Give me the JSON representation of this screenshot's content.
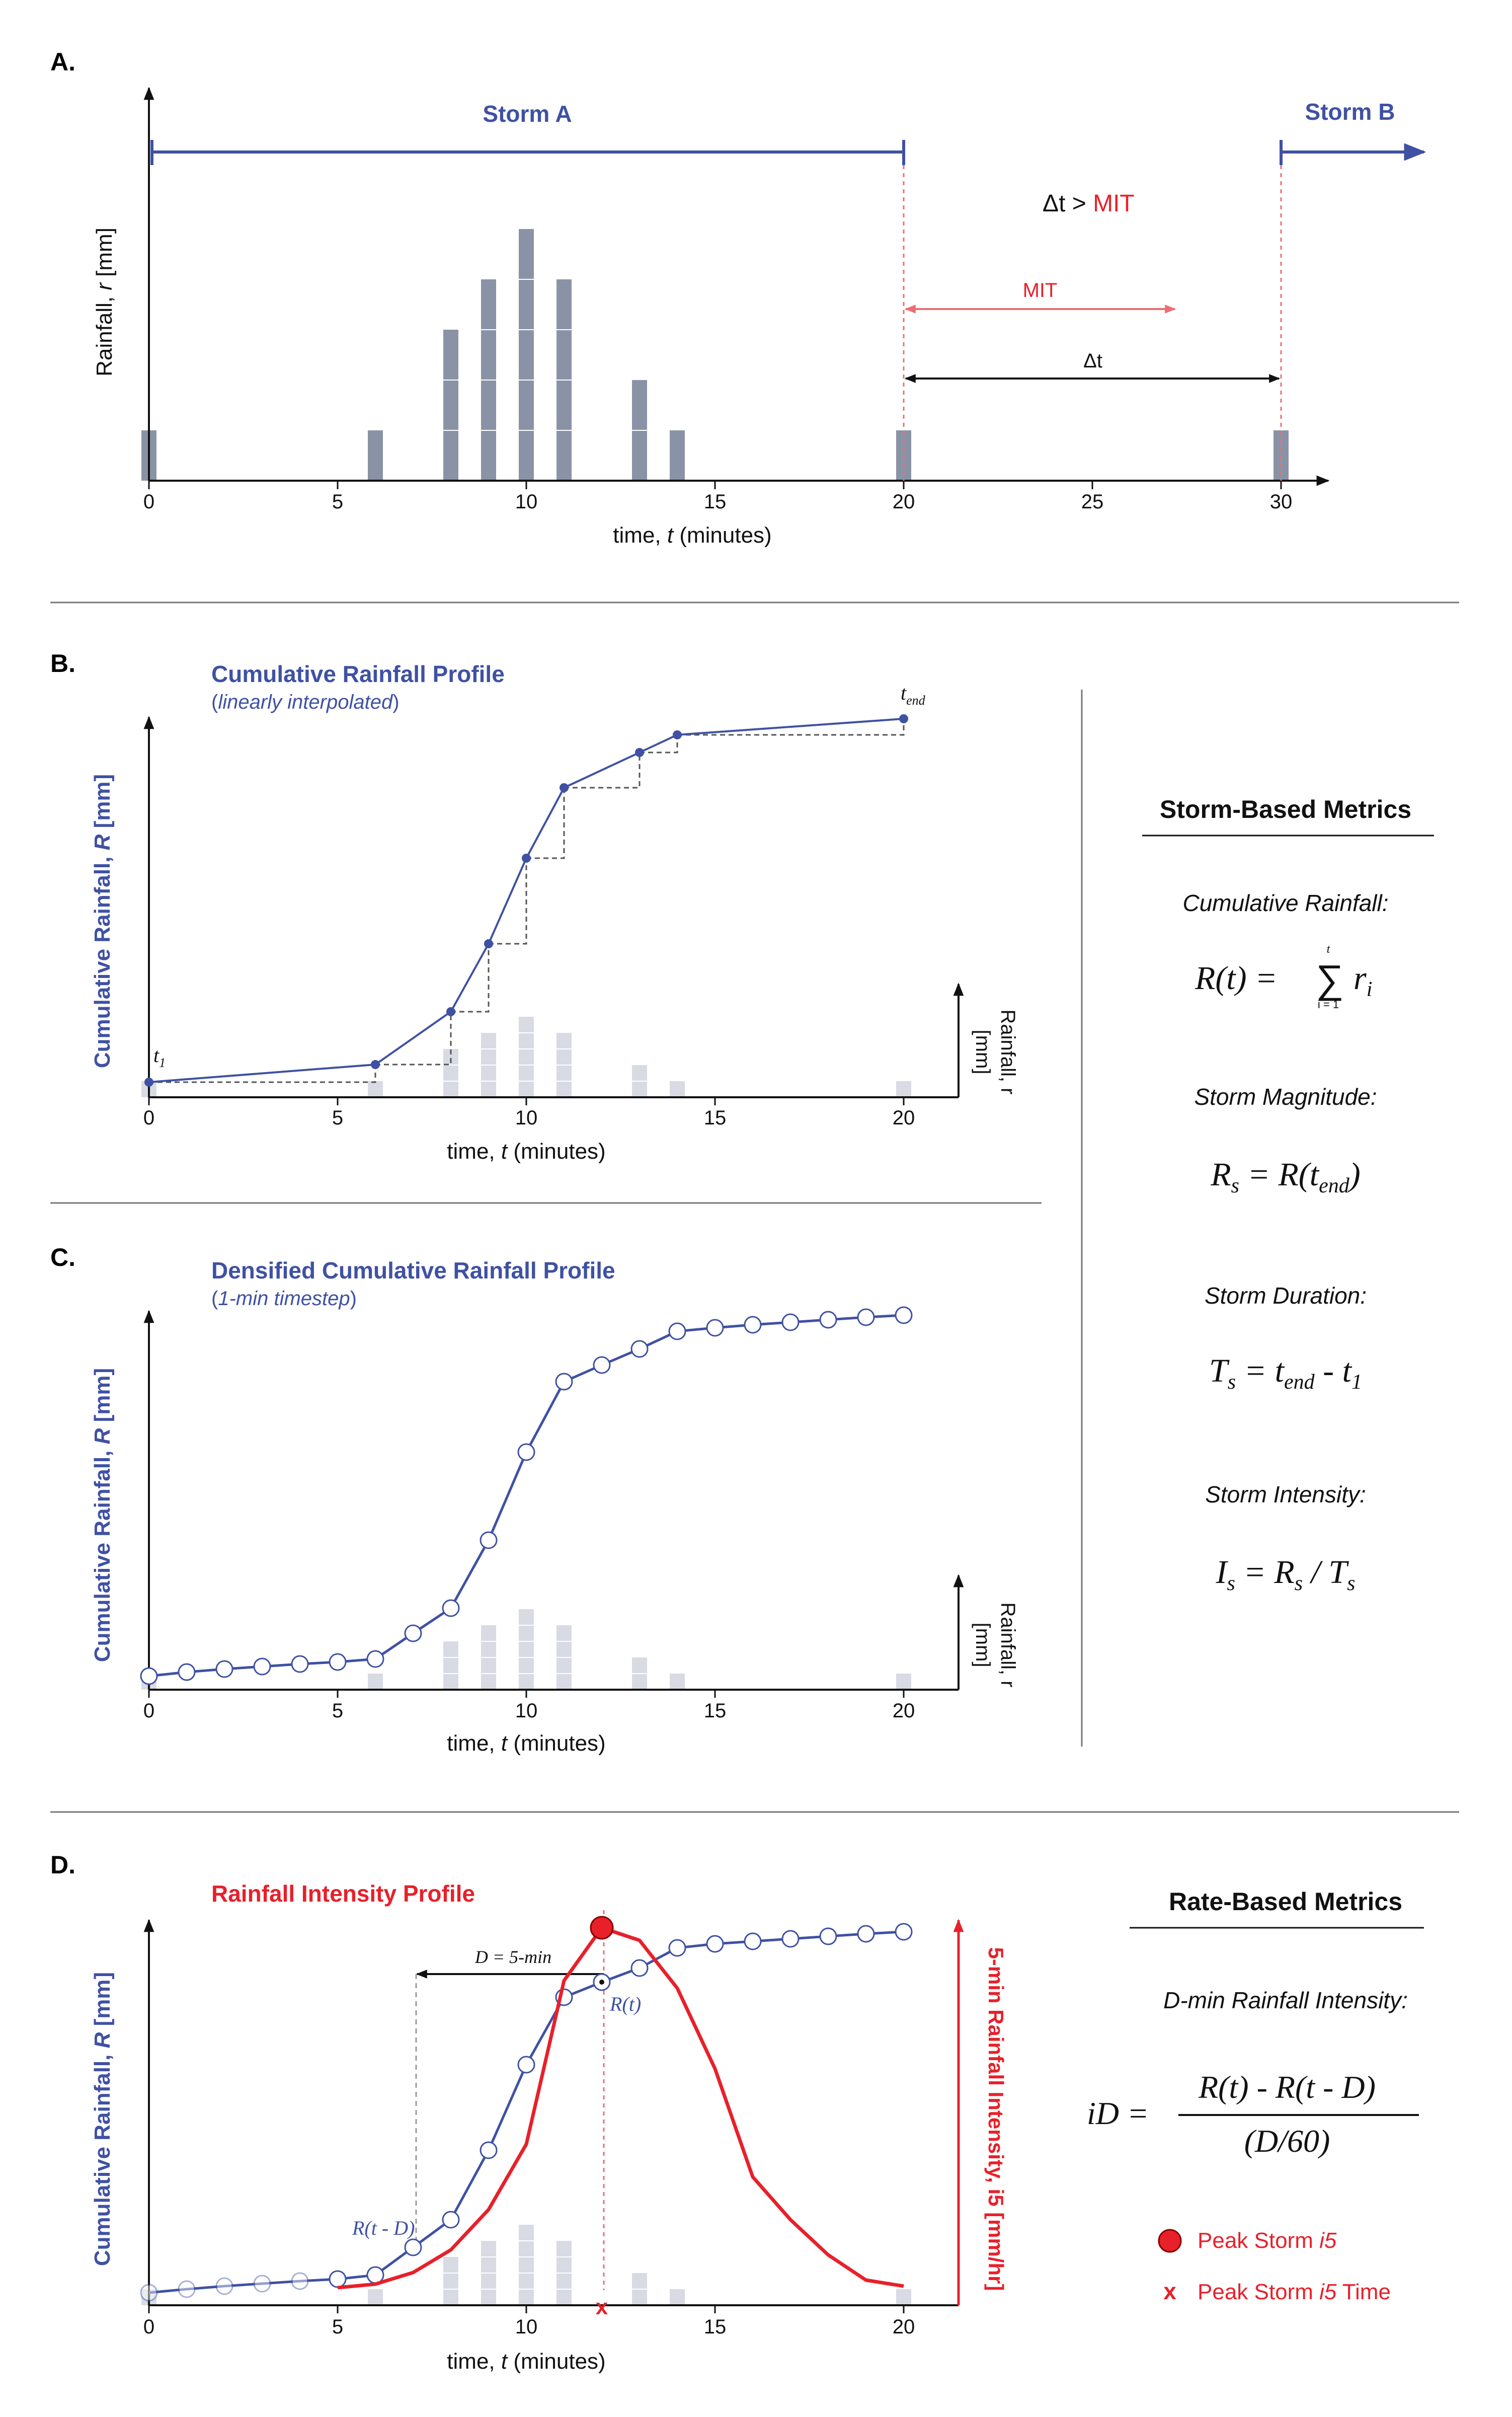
{
  "colors": {
    "blue": "#3f51a3",
    "red": "#e8202a",
    "pale_red": "#ea6f73",
    "bar_dark": "#8a93a6",
    "bar_light": "#d8dbe3",
    "black": "#111111",
    "gray_line": "#888888"
  },
  "panel_a": {
    "label": "A.",
    "storm_a_label": "Storm A",
    "storm_b_label": "Storm B",
    "delta_t_gt": "Δt > ",
    "mit_word": "MIT",
    "mit_arrow_label": "MIT",
    "delta_t_label": "Δt",
    "y_label_pre": "Rainfall, ",
    "y_label_var": "r",
    "y_label_post": " [mm]",
    "x_label_pre": "time, ",
    "x_label_var": "t",
    "x_label_post": " (minutes)",
    "x_ticks": [
      "0",
      "5",
      "10",
      "15",
      "20",
      "25",
      "30"
    ]
  },
  "panel_b": {
    "label": "B.",
    "title": "Cumulative Rainfall Profile",
    "subtitle_open": "(",
    "subtitle_italic": "linearly interpolated",
    "subtitle_close": ")",
    "y_label_pre": "Cumulative Rainfall, ",
    "y_label_var": "R",
    "y_label_post": " [mm]",
    "right_label_1": "Rainfall, r",
    "right_label_2": "[mm]",
    "x_label_pre": "time, ",
    "x_label_var": "t",
    "x_label_post": " (minutes)",
    "x_ticks": [
      "0",
      "5",
      "10",
      "15",
      "20"
    ],
    "t1_main": "t",
    "t1_sub": "1",
    "tend_main": "t",
    "tend_sub": "end"
  },
  "panel_c": {
    "label": "C.",
    "title": "Densified Cumulative Rainfall Profile",
    "subtitle_open": "(",
    "subtitle_italic": "1-min timestep",
    "subtitle_close": ")",
    "y_label_pre": "Cumulative Rainfall, ",
    "y_label_var": "R",
    "y_label_post": " [mm]",
    "right_label_1": "Rainfall, r",
    "right_label_2": "[mm]",
    "x_label_pre": "time, ",
    "x_label_var": "t",
    "x_label_post": " (minutes)",
    "x_ticks": [
      "0",
      "5",
      "10",
      "15",
      "20"
    ]
  },
  "panel_d": {
    "label": "D.",
    "title": "Rainfall Intensity Profile",
    "y_label_pre": "Cumulative Rainfall, ",
    "y_label_var": "R",
    "y_label_post": " [mm]",
    "right_axis_label": "5-min Rainfall Intensity, i5 [mm/hr]",
    "x_label_pre": "time, ",
    "x_label_var": "t",
    "x_label_post": " (minutes)",
    "x_ticks": [
      "0",
      "5",
      "10",
      "15",
      "20"
    ],
    "d_label": "D = 5-min",
    "rt_label": "R(t)",
    "rtd_label": "R(t - D)"
  },
  "storm_metrics": {
    "title": "Storm-Based Metrics",
    "cumulative_label": "Cumulative Rainfall:",
    "cumulative_formula_lhs": "R(t) = ",
    "sum_symbol": "∑",
    "sum_top": "t",
    "sum_bottom": "i = 1",
    "sum_term": "r",
    "sum_term_sub": "i",
    "magnitude_label": "Storm Magnitude:",
    "magnitude_lhs": "R",
    "magnitude_lhs_sub": "s",
    "magnitude_rhs_pre": " = R(t",
    "magnitude_rhs_sub": "end",
    "magnitude_rhs_post": ")",
    "duration_label": "Storm Duration:",
    "duration_lhs": "T",
    "duration_lhs_sub": "s",
    "duration_rhs_1": " =  t",
    "duration_rhs_1_sub": "end",
    "duration_rhs_2": " - t",
    "duration_rhs_2_sub": "1",
    "intensity_label": "Storm Intensity:",
    "intensity_lhs": "I",
    "intensity_lhs_sub": "s",
    "intensity_mid": " = R",
    "intensity_mid_sub": "s",
    "intensity_div": "  /  T",
    "intensity_div_sub": "s"
  },
  "rate_metrics": {
    "title": "Rate-Based Metrics",
    "dmin_label": "D-min Rainfall Intensity:",
    "formula_lhs": "iD = ",
    "numerator": "R(t) - R(t - D)",
    "denominator": "(D/60)",
    "legend_peak_pre": "Peak Storm ",
    "legend_peak_var": "i5",
    "legend_time_pre": "Peak Storm ",
    "legend_time_var": "i5",
    "legend_time_post": " Time",
    "legend_x_mark": "x"
  }
}
